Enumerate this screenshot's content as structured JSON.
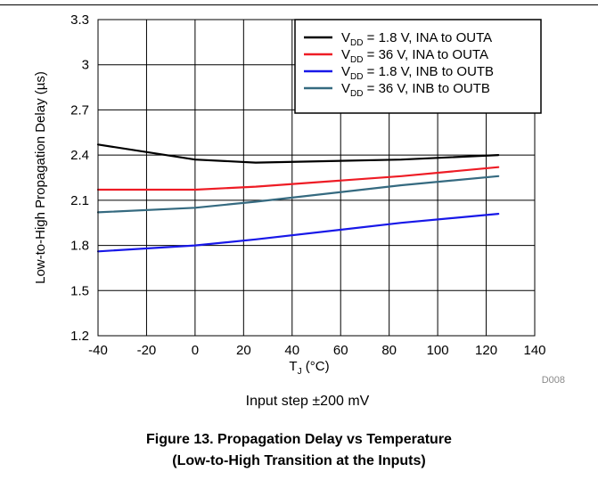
{
  "chart_data": {
    "type": "line",
    "x": [
      -40,
      0,
      25,
      85,
      125
    ],
    "series": [
      {
        "name": "V_DD = 1.8 V, INA to OUTA",
        "values": [
          2.47,
          2.37,
          2.35,
          2.37,
          2.4
        ],
        "color": "#000000",
        "label": {
          "pre": "V",
          "sub": "DD",
          "post": " = 1.8 V, INA to OUTA"
        }
      },
      {
        "name": "V_DD = 36 V, INA to OUTA",
        "values": [
          2.17,
          2.17,
          2.19,
          2.26,
          2.32
        ],
        "color": "#ee1c25",
        "label": {
          "pre": "V",
          "sub": "DD",
          "post": " = 36 V, INA to OUTA"
        }
      },
      {
        "name": "V_DD = 1.8 V, INB to OUTB",
        "values": [
          1.76,
          1.8,
          1.84,
          1.95,
          2.01
        ],
        "color": "#1818e8",
        "label": {
          "pre": "V",
          "sub": "DD",
          "post": " = 1.8 V, INB to OUTB"
        }
      },
      {
        "name": "V_DD = 36 V, INB to OUTB",
        "values": [
          2.02,
          2.05,
          2.09,
          2.2,
          2.26
        ],
        "color": "#356a80",
        "label": {
          "pre": "V",
          "sub": "DD",
          "post": " = 36 V, INB to OUTB"
        }
      }
    ],
    "xlim": [
      -40,
      140
    ],
    "ylim": [
      1.2,
      3.3
    ],
    "xticks": [
      -40,
      -20,
      0,
      20,
      40,
      60,
      80,
      100,
      120,
      140
    ],
    "yticks": [
      1.2,
      1.5,
      1.8,
      2.1,
      2.4,
      2.7,
      3,
      3.3
    ],
    "xtick_labels": [
      "-40",
      "-20",
      "0",
      "20",
      "40",
      "60",
      "80",
      "100",
      "120",
      "140"
    ],
    "ytick_labels": [
      "1.2",
      "1.5",
      "1.8",
      "2.1",
      "2.4",
      "2.7",
      "3",
      "3.3"
    ],
    "xlabel": {
      "pre": "T",
      "sub": "J",
      "post": " (°C)"
    },
    "ylabel": "Low-to-High Propagation Delay (µs)",
    "grid": true,
    "legend_position": "top-right",
    "note": "D008",
    "subtitle": "Input step ±200 mV"
  },
  "caption": {
    "line1": "Figure 13. Propagation Delay vs Temperature",
    "line2": "(Low-to-High Transition at the Inputs)"
  }
}
